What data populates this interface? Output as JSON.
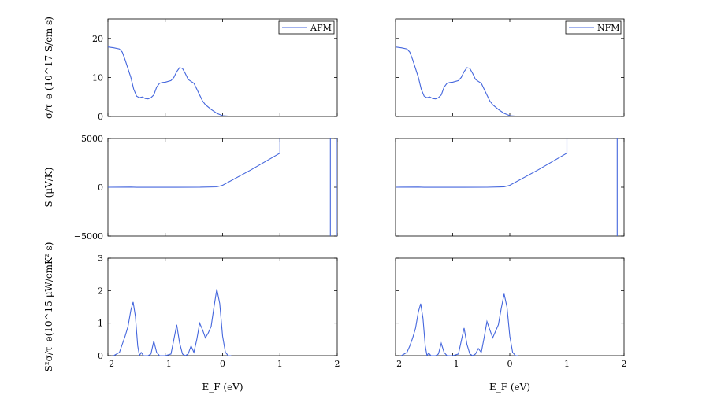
{
  "chart_data": [
    {
      "type": "line",
      "panel": "AFM-conductivity",
      "xlim": [
        -2,
        2
      ],
      "ylim": [
        0,
        25
      ],
      "yticks": [
        "0",
        "10",
        "20"
      ],
      "ylabel": "σ/τ_e (10^17 S/cm s)",
      "legend": "AFM",
      "legend_position": "top-right",
      "x": [
        -2,
        -1.9,
        -1.8,
        -1.75,
        -1.7,
        -1.6,
        -1.55,
        -1.5,
        -1.45,
        -1.4,
        -1.35,
        -1.3,
        -1.25,
        -1.2,
        -1.15,
        -1.1,
        -1.05,
        -1.0,
        -0.9,
        -0.85,
        -0.8,
        -0.75,
        -0.7,
        -0.65,
        -0.6,
        -0.55,
        -0.5,
        -0.45,
        -0.4,
        -0.35,
        -0.3,
        -0.2,
        -0.1,
        0,
        0.2,
        0.5,
        1.0,
        1.5,
        2.0
      ],
      "y": [
        17.8,
        17.6,
        17.3,
        16.5,
        14.5,
        10,
        7,
        5.2,
        4.8,
        5,
        4.6,
        4.5,
        4.8,
        5.5,
        7.5,
        8.5,
        8.7,
        8.8,
        9.2,
        10,
        11.5,
        12.5,
        12.3,
        11,
        9.5,
        9,
        8.5,
        7,
        5.5,
        4,
        3,
        1.8,
        0.8,
        0.2,
        0,
        0,
        0,
        0,
        0
      ]
    },
    {
      "type": "line",
      "panel": "NFM-conductivity",
      "xlim": [
        -2,
        2
      ],
      "ylim": [
        0,
        25
      ],
      "yticks": [],
      "legend": "NFM",
      "legend_position": "top-right",
      "x": [
        -2,
        -1.9,
        -1.8,
        -1.75,
        -1.7,
        -1.6,
        -1.55,
        -1.5,
        -1.45,
        -1.4,
        -1.35,
        -1.3,
        -1.25,
        -1.2,
        -1.15,
        -1.1,
        -1.05,
        -1.0,
        -0.9,
        -0.85,
        -0.8,
        -0.75,
        -0.7,
        -0.65,
        -0.6,
        -0.55,
        -0.5,
        -0.45,
        -0.4,
        -0.35,
        -0.3,
        -0.2,
        -0.1,
        0,
        0.2,
        0.5,
        1.0,
        1.5,
        2.0
      ],
      "y": [
        17.8,
        17.6,
        17.3,
        16.5,
        14.5,
        10,
        7,
        5.2,
        4.8,
        5,
        4.6,
        4.5,
        4.8,
        5.5,
        7.5,
        8.5,
        8.7,
        8.8,
        9.2,
        10,
        11.5,
        12.5,
        12.3,
        11,
        9.5,
        9,
        8.5,
        7,
        5.5,
        4,
        3,
        1.8,
        0.8,
        0.2,
        0,
        0,
        0,
        0,
        0
      ]
    },
    {
      "type": "line",
      "panel": "AFM-seebeck",
      "xlim": [
        -2,
        2
      ],
      "ylim": [
        -5000,
        5000
      ],
      "yticks": [
        "−5000",
        "0",
        "5000"
      ],
      "ylabel": "S (μV/K)",
      "segments": [
        {
          "x": [
            -2,
            -1.6,
            -1.5,
            -1.2,
            -0.8,
            -0.4,
            -0.1,
            0.0,
            0.5,
            1.0,
            1.0
          ],
          "y": [
            0,
            20,
            -10,
            -5,
            -10,
            0,
            40,
            200,
            1800,
            3500,
            5000
          ]
        },
        {
          "x": [
            1.88,
            1.88
          ],
          "y": [
            5000,
            -5000
          ]
        },
        {
          "x": [
            2.0,
            2.0
          ],
          "y": [
            -5000,
            5000
          ]
        }
      ]
    },
    {
      "type": "line",
      "panel": "NFM-seebeck",
      "xlim": [
        -2,
        2
      ],
      "ylim": [
        -5000,
        5000
      ],
      "yticks": [],
      "segments": [
        {
          "x": [
            -2,
            -1.6,
            -1.5,
            -1.2,
            -0.8,
            -0.4,
            -0.1,
            0.0,
            0.5,
            1.0,
            1.0
          ],
          "y": [
            0,
            20,
            -10,
            -5,
            -10,
            0,
            40,
            200,
            1800,
            3500,
            5000
          ]
        },
        {
          "x": [
            1.88,
            1.88
          ],
          "y": [
            5000,
            -5000
          ]
        }
      ]
    },
    {
      "type": "line",
      "panel": "AFM-power-factor",
      "xlim": [
        -2,
        2
      ],
      "ylim": [
        0,
        3
      ],
      "xticks": [
        "−2",
        "−1",
        "0",
        "1",
        "2"
      ],
      "yticks": [
        "0",
        "1",
        "2",
        "3"
      ],
      "xlabel": "E_F (eV)",
      "ylabel": "S²σ/τ_e(10^15 μW/cmK² s)",
      "x": [
        -1.9,
        -1.8,
        -1.75,
        -1.7,
        -1.65,
        -1.6,
        -1.56,
        -1.52,
        -1.48,
        -1.45,
        -1.42,
        -1.38,
        -1.3,
        -1.25,
        -1.2,
        -1.15,
        -1.1,
        -1.05,
        -1.0,
        -0.9,
        -0.85,
        -0.8,
        -0.75,
        -0.7,
        -0.65,
        -0.6,
        -0.55,
        -0.5,
        -0.45,
        -0.4,
        -0.35,
        -0.3,
        -0.25,
        -0.2,
        -0.15,
        -0.1,
        -0.05,
        0.0,
        0.05,
        0.1,
        0.15
      ],
      "y": [
        0,
        0.1,
        0.35,
        0.6,
        0.9,
        1.4,
        1.65,
        1.2,
        0.3,
        0.0,
        0.1,
        0.0,
        0.0,
        0.05,
        0.45,
        0.1,
        0.0,
        0.0,
        0.0,
        0.05,
        0.5,
        0.95,
        0.4,
        0.05,
        0.0,
        0.05,
        0.3,
        0.1,
        0.5,
        1.0,
        0.8,
        0.55,
        0.7,
        0.9,
        1.5,
        2.05,
        1.6,
        0.6,
        0.1,
        0.0,
        0.0
      ]
    },
    {
      "type": "line",
      "panel": "NFM-power-factor",
      "xlim": [
        -2,
        2
      ],
      "ylim": [
        0,
        3
      ],
      "xticks": [
        "−2",
        "−1",
        "0",
        "1",
        "2"
      ],
      "yticks": [],
      "xlabel": "E_F (eV)",
      "x": [
        -1.9,
        -1.8,
        -1.75,
        -1.7,
        -1.65,
        -1.6,
        -1.56,
        -1.52,
        -1.48,
        -1.45,
        -1.42,
        -1.38,
        -1.3,
        -1.25,
        -1.2,
        -1.15,
        -1.1,
        -1.05,
        -1.0,
        -0.9,
        -0.85,
        -0.8,
        -0.75,
        -0.7,
        -0.65,
        -0.6,
        -0.55,
        -0.5,
        -0.45,
        -0.4,
        -0.35,
        -0.3,
        -0.25,
        -0.2,
        -0.15,
        -0.1,
        -0.05,
        0.0,
        0.05,
        0.1,
        0.15
      ],
      "y": [
        0,
        0.1,
        0.3,
        0.55,
        0.85,
        1.35,
        1.6,
        1.15,
        0.3,
        0.0,
        0.08,
        0.0,
        0.0,
        0.05,
        0.38,
        0.1,
        0.0,
        0.0,
        0.0,
        0.05,
        0.45,
        0.85,
        0.35,
        0.05,
        0.0,
        0.05,
        0.22,
        0.1,
        0.55,
        1.05,
        0.8,
        0.55,
        0.75,
        0.95,
        1.45,
        1.9,
        1.5,
        0.6,
        0.1,
        0.0,
        0.0
      ]
    }
  ],
  "style": {
    "line_color": "#4466dd",
    "axis_color": "#000000"
  }
}
